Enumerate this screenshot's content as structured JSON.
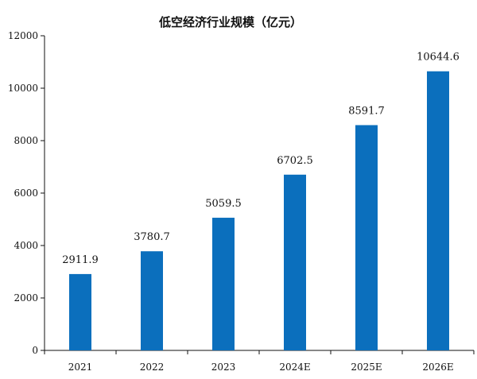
{
  "chart_data": {
    "type": "bar",
    "title": "低空经济行业规模（亿元）",
    "categories": [
      "2021",
      "2022",
      "2023",
      "2024E",
      "2025E",
      "2026E"
    ],
    "values": [
      2911.9,
      3780.7,
      5059.5,
      6702.5,
      8591.7,
      10644.6
    ],
    "data_labels": [
      "2911.9",
      "3780.7",
      "5059.5",
      "6702.5",
      "8591.7",
      "10644.6"
    ],
    "ylim": [
      0,
      12000
    ],
    "yticks": [
      0,
      2000,
      4000,
      6000,
      8000,
      10000,
      12000
    ],
    "ytick_labels": [
      "0",
      "2000",
      "4000",
      "6000",
      "8000",
      "10000",
      "12000"
    ],
    "xlabel": "",
    "ylabel": "",
    "grid": false,
    "bar_color": "#0b6fbd"
  }
}
